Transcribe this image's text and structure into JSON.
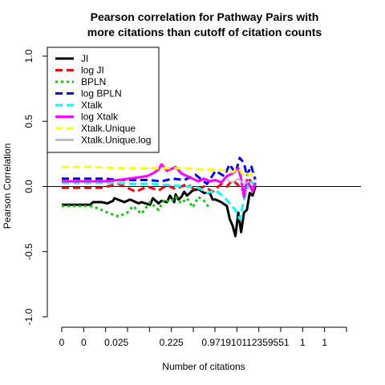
{
  "chart_data": {
    "type": "line",
    "title": [
      "Pearson correlation for Pathway Pairs with",
      "more citations than cutoff of citation counts"
    ],
    "xlabel": "Number of citations",
    "ylabel": "Pearson Correlation",
    "xlim": [
      0,
      100
    ],
    "ylim": [
      -1.0,
      1.0
    ],
    "y_ticks": [
      -1.0,
      -0.5,
      0.0,
      0.5,
      1.0
    ],
    "y_tick_labels": [
      "-1.0",
      "-0.5",
      "0.0",
      "0.5",
      "1.0"
    ],
    "x_ticks": [
      0,
      7.7,
      15.4,
      23.1,
      30.8,
      38.5,
      46.2,
      53.8,
      61.5,
      69.2,
      76.9,
      84.6,
      92.3,
      100
    ],
    "x_tick_labels": [
      {
        "x": 0,
        "text": "0"
      },
      {
        "x": 7.7,
        "text": "0"
      },
      {
        "x": 19.2,
        "text": "0.025"
      },
      {
        "x": 38.5,
        "text": "0.225"
      },
      {
        "x": 64.5,
        "text": "0.971910112359551"
      },
      {
        "x": 84.6,
        "text": "1"
      },
      {
        "x": 92.3,
        "text": "1"
      }
    ],
    "reference_line_y": 0.0,
    "legend_position": "top-left",
    "series": [
      {
        "name": "JI",
        "color": "#000000",
        "dash": "solid",
        "width": 3,
        "x": [
          0,
          10,
          11,
          14,
          16,
          18,
          18.5,
          22,
          24,
          27,
          28,
          31,
          32,
          34,
          35,
          37,
          38,
          39.5,
          40,
          41,
          42,
          43,
          44,
          46,
          48,
          50,
          52,
          53,
          54,
          56,
          58,
          59,
          60,
          61,
          62,
          63,
          64,
          65,
          66,
          67,
          68
        ],
        "y": [
          -0.14,
          -0.14,
          -0.12,
          -0.12,
          -0.13,
          -0.11,
          -0.09,
          -0.12,
          -0.1,
          -0.13,
          -0.12,
          -0.14,
          -0.09,
          -0.13,
          -0.11,
          -0.12,
          -0.07,
          -0.12,
          -0.06,
          -0.1,
          -0.08,
          -0.04,
          -0.07,
          -0.03,
          -0.02,
          -0.05,
          -0.05,
          -0.1,
          -0.1,
          -0.12,
          -0.15,
          -0.25,
          -0.3,
          -0.38,
          -0.2,
          -0.35,
          -0.2,
          -0.18,
          -0.05,
          -0.07,
          0.0
        ]
      },
      {
        "name": "log JI",
        "color": "#ff0000",
        "dash": "dashed",
        "width": 3,
        "x": [
          0,
          14,
          20,
          23,
          26,
          30,
          34,
          37,
          40,
          44,
          47,
          50,
          53,
          56,
          58,
          60,
          62,
          64,
          66,
          68
        ],
        "y": [
          -0.01,
          -0.01,
          0.02,
          -0.01,
          -0.04,
          0.0,
          -0.03,
          0.01,
          -0.02,
          0.02,
          -0.03,
          0.0,
          -0.04,
          0.02,
          0.0,
          0.05,
          0.01,
          -0.04,
          0.05,
          0.0
        ]
      },
      {
        "name": "BPLN",
        "color": "#00cd00",
        "dash": "dotted",
        "width": 3,
        "x": [
          0,
          10,
          13,
          16,
          20,
          23,
          25,
          28,
          31,
          34,
          36,
          38,
          40,
          42,
          44,
          46,
          48,
          50,
          52
        ],
        "y": [
          -0.15,
          -0.15,
          -0.17,
          -0.2,
          -0.23,
          -0.2,
          -0.15,
          -0.21,
          -0.12,
          -0.18,
          -0.1,
          -0.12,
          -0.08,
          -0.13,
          -0.09,
          -0.16,
          -0.08,
          -0.11,
          -0.17
        ]
      },
      {
        "name": "log BPLN",
        "color": "#0000ff",
        "dash": "dashed",
        "width": 3,
        "x": [
          0,
          5,
          15,
          20,
          25,
          30,
          35,
          39,
          43,
          47,
          51,
          54,
          57,
          59,
          61,
          62.5,
          64,
          65,
          66.5,
          68
        ],
        "y": [
          0.06,
          0.06,
          0.06,
          0.05,
          0.05,
          0.05,
          0.04,
          0.06,
          0.05,
          0.09,
          0.02,
          0.12,
          0.08,
          0.17,
          0.1,
          0.22,
          0.18,
          0.08,
          0.16,
          0.05
        ]
      },
      {
        "name": "Xtalk",
        "color": "#00ffff",
        "dash": "dashed",
        "width": 3,
        "x": [
          0,
          15,
          25,
          32,
          38,
          44,
          48,
          51,
          54,
          57,
          59,
          61,
          62.5,
          64,
          66,
          68
        ],
        "y": [
          0.03,
          0.03,
          0.02,
          0.02,
          0.01,
          0.0,
          -0.01,
          -0.05,
          -0.03,
          -0.08,
          -0.13,
          -0.18,
          -0.25,
          -0.1,
          0.05,
          0.0
        ]
      },
      {
        "name": "log Xtalk",
        "color": "#ff00ff",
        "dash": "solid",
        "width": 3,
        "x": [
          0,
          15,
          20,
          27,
          30,
          32,
          34,
          35,
          37,
          40,
          42,
          44,
          46,
          48,
          50,
          52,
          54,
          56,
          58,
          60,
          62,
          63,
          64,
          65,
          66,
          67,
          68
        ],
        "y": [
          0.04,
          0.04,
          0.05,
          0.07,
          0.08,
          0.1,
          0.13,
          0.17,
          0.12,
          0.15,
          0.1,
          0.08,
          0.06,
          0.04,
          0.06,
          0.04,
          0.05,
          0.03,
          0.08,
          0.1,
          0.14,
          0.06,
          -0.08,
          0.05,
          0.01,
          -0.04,
          0.03
        ]
      },
      {
        "name": "Xtalk.Unique",
        "color": "#ffff00",
        "dash": "dashed",
        "width": 3,
        "x": [
          0,
          10,
          20,
          30,
          38,
          44,
          50,
          55,
          58,
          60,
          62,
          64,
          66,
          68
        ],
        "y": [
          0.15,
          0.15,
          0.14,
          0.14,
          0.14,
          0.14,
          0.13,
          0.13,
          0.12,
          0.11,
          0.14,
          0.08,
          0.1,
          0.05
        ]
      },
      {
        "name": "Xtalk.Unique.log",
        "color": "#bebebe",
        "dash": "solid",
        "width": 2,
        "x": [
          58,
          60,
          62,
          64,
          66
        ],
        "y": [
          0.05,
          0.03,
          0.06,
          0.02,
          0.04
        ]
      }
    ]
  }
}
